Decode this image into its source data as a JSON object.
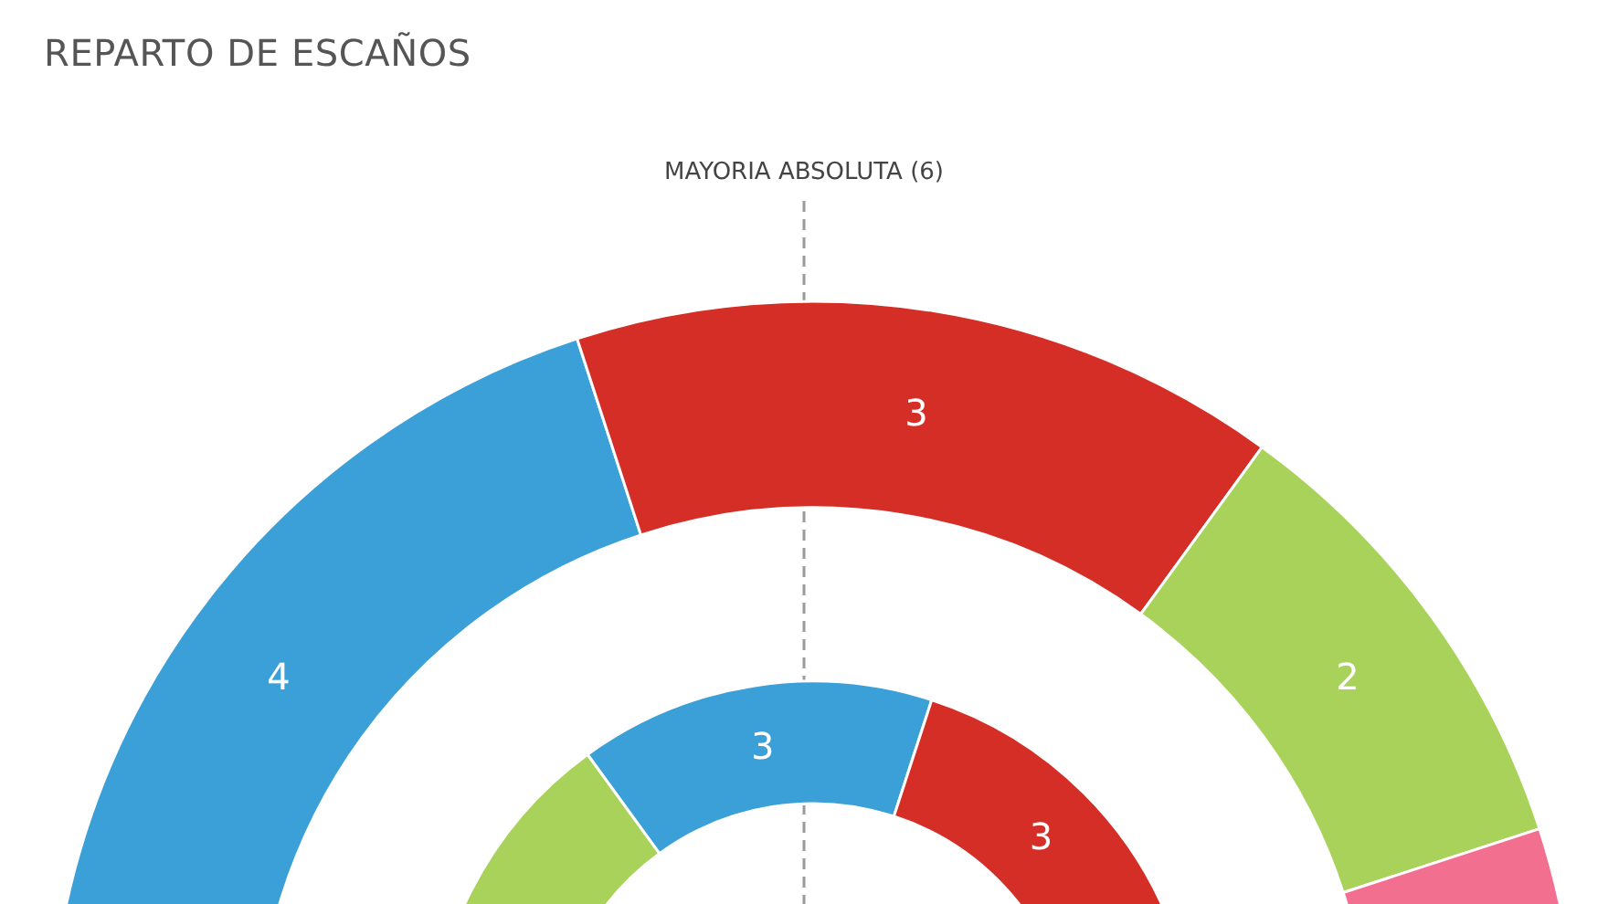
{
  "chart_data": {
    "type": "donut",
    "title": "REPARTO DE ESCAÑOS",
    "categories": [
      null,
      null,
      null,
      null
    ],
    "series": [
      {
        "values": [
          4,
          3,
          2,
          1
        ],
        "value_labels": [
          "4",
          "3",
          "2",
          null
        ],
        "colors": [
          "#3b9fd8",
          "#d52e27",
          "#a9d25a",
          "#f26f8f"
        ]
      },
      {
        "values": [
          3,
          3,
          3,
          null
        ],
        "value_labels": [
          null,
          "3",
          "3",
          null
        ],
        "colors": [
          "#a9d25a",
          "#3b9fd8",
          "#d52e27",
          null
        ]
      }
    ],
    "annotations": [
      "MAYORIA ABSOLUTA (6)"
    ]
  }
}
